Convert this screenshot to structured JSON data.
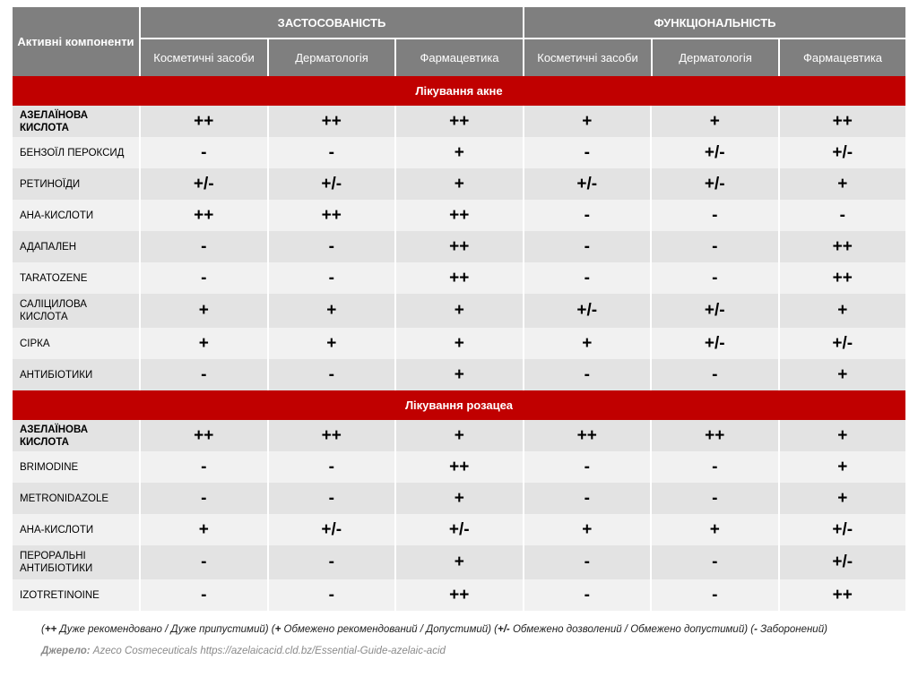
{
  "header": {
    "active_components": "Активні компоненти",
    "groups": [
      "ЗАСТОСОВАНІСТЬ",
      "ФУНКЦІОНАЛЬНІСТЬ"
    ],
    "columns": [
      "Косметичні засоби",
      "Дерматологія",
      "Фармацевтика",
      "Косметичні засоби",
      "Дерматологія",
      "Фармацевтика"
    ]
  },
  "sections": [
    {
      "title": "Лікування акне",
      "rows": [
        {
          "name": "АЗЕЛАЇНОВА КИСЛОТА",
          "bold": true,
          "values": [
            "++",
            "++",
            "++",
            "+",
            "+",
            "++"
          ]
        },
        {
          "name": "БЕНЗОЇЛ ПЕРОКСИД",
          "values": [
            "-",
            "-",
            "+",
            "-",
            "+/-",
            "+/-"
          ]
        },
        {
          "name": "РЕТИНОЇДИ",
          "values": [
            "+/-",
            "+/-",
            "+",
            "+/-",
            "+/-",
            "+"
          ]
        },
        {
          "name": "АНА-КИСЛОТИ",
          "values": [
            "++",
            "++",
            "++",
            "-",
            "-",
            "-"
          ]
        },
        {
          "name": "АДАПАЛЕН",
          "values": [
            "-",
            "-",
            "++",
            "-",
            "-",
            "++"
          ]
        },
        {
          "name": "TARATOZENE",
          "values": [
            "-",
            "-",
            "++",
            "-",
            "-",
            "++"
          ]
        },
        {
          "name": "САЛІЦИЛОВА КИСЛОТА",
          "values": [
            "+",
            "+",
            "+",
            "+/-",
            "+/-",
            "+"
          ]
        },
        {
          "name": "СІРКА",
          "values": [
            "+",
            "+",
            "+",
            "+",
            "+/-",
            "+/-"
          ]
        },
        {
          "name": "АНТИБІОТИКИ",
          "values": [
            "-",
            "-",
            "+",
            "-",
            "-",
            "+"
          ]
        }
      ]
    },
    {
      "title": "Лікування розацеа",
      "rows": [
        {
          "name": "АЗЕЛАЇНОВА КИСЛОТА",
          "bold": true,
          "values": [
            "++",
            "++",
            "+",
            "++",
            "++",
            "+"
          ]
        },
        {
          "name": "BRIMODINE",
          "values": [
            "-",
            "-",
            "++",
            "-",
            "-",
            "+"
          ]
        },
        {
          "name": "METRONIDAZOLE",
          "values": [
            "-",
            "-",
            "+",
            "-",
            "-",
            "+"
          ]
        },
        {
          "name": "АНА-КИСЛОТИ",
          "values": [
            "+",
            "+/-",
            "+/-",
            "+",
            "+",
            "+/-"
          ]
        },
        {
          "name": "ПЕРОРАЛЬНІ АНТИБІОТИКИ",
          "values": [
            "-",
            "-",
            "+",
            "-",
            "-",
            "+/-"
          ]
        },
        {
          "name": "IZOTRETINOINE",
          "values": [
            "-",
            "-",
            "++",
            "-",
            "-",
            "++"
          ]
        }
      ]
    }
  ],
  "legend": [
    {
      "symbol": "++",
      "text": "Дуже рекомендовано / Дуже припустимий"
    },
    {
      "symbol": "+",
      "text": "Обмежено рекомендований / Допустимий"
    },
    {
      "symbol": "+/-",
      "text": "Обмежено дозволений / Обмежено допустимий"
    },
    {
      "symbol": "-",
      "text": "Заборонений"
    }
  ],
  "source": {
    "label": "Джерело:",
    "text": "Azeco Cosmeceuticals https://azelaicacid.cld.bz/Essential-Guide-azelaic-acid"
  },
  "colors": {
    "header": "#7f7f7f",
    "section_band": "#c00000",
    "row_dark": "#e3e3e3",
    "row_light": "#f1f1f1"
  }
}
